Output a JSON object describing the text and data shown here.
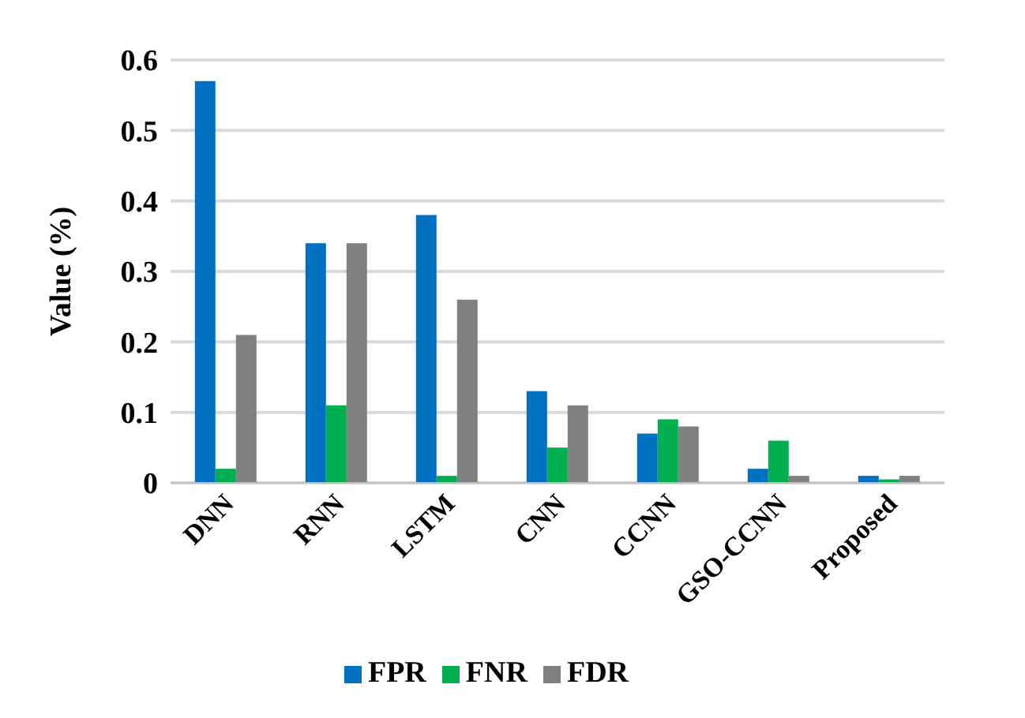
{
  "chart_data": {
    "type": "bar",
    "ylabel": "Value (%)",
    "categories": [
      "DNN",
      "RNN",
      "LSTM",
      "CNN",
      "CCNN",
      "GSO-CCNN",
      "Proposed"
    ],
    "series": [
      {
        "name": "FPR",
        "color": "#0070c0",
        "values": [
          0.57,
          0.34,
          0.38,
          0.13,
          0.07,
          0.02,
          0.01
        ]
      },
      {
        "name": "FNR",
        "color": "#00b050",
        "values": [
          0.02,
          0.11,
          0.01,
          0.05,
          0.09,
          0.06,
          0.005
        ]
      },
      {
        "name": "FDR",
        "color": "#808080",
        "values": [
          0.21,
          0.34,
          0.26,
          0.11,
          0.08,
          0.01,
          0.01
        ]
      }
    ],
    "ylim": [
      0,
      0.6
    ],
    "yticks": [
      0,
      0.1,
      0.2,
      0.3,
      0.4,
      0.5,
      0.6
    ],
    "grid": "y",
    "legend": "bottom"
  }
}
